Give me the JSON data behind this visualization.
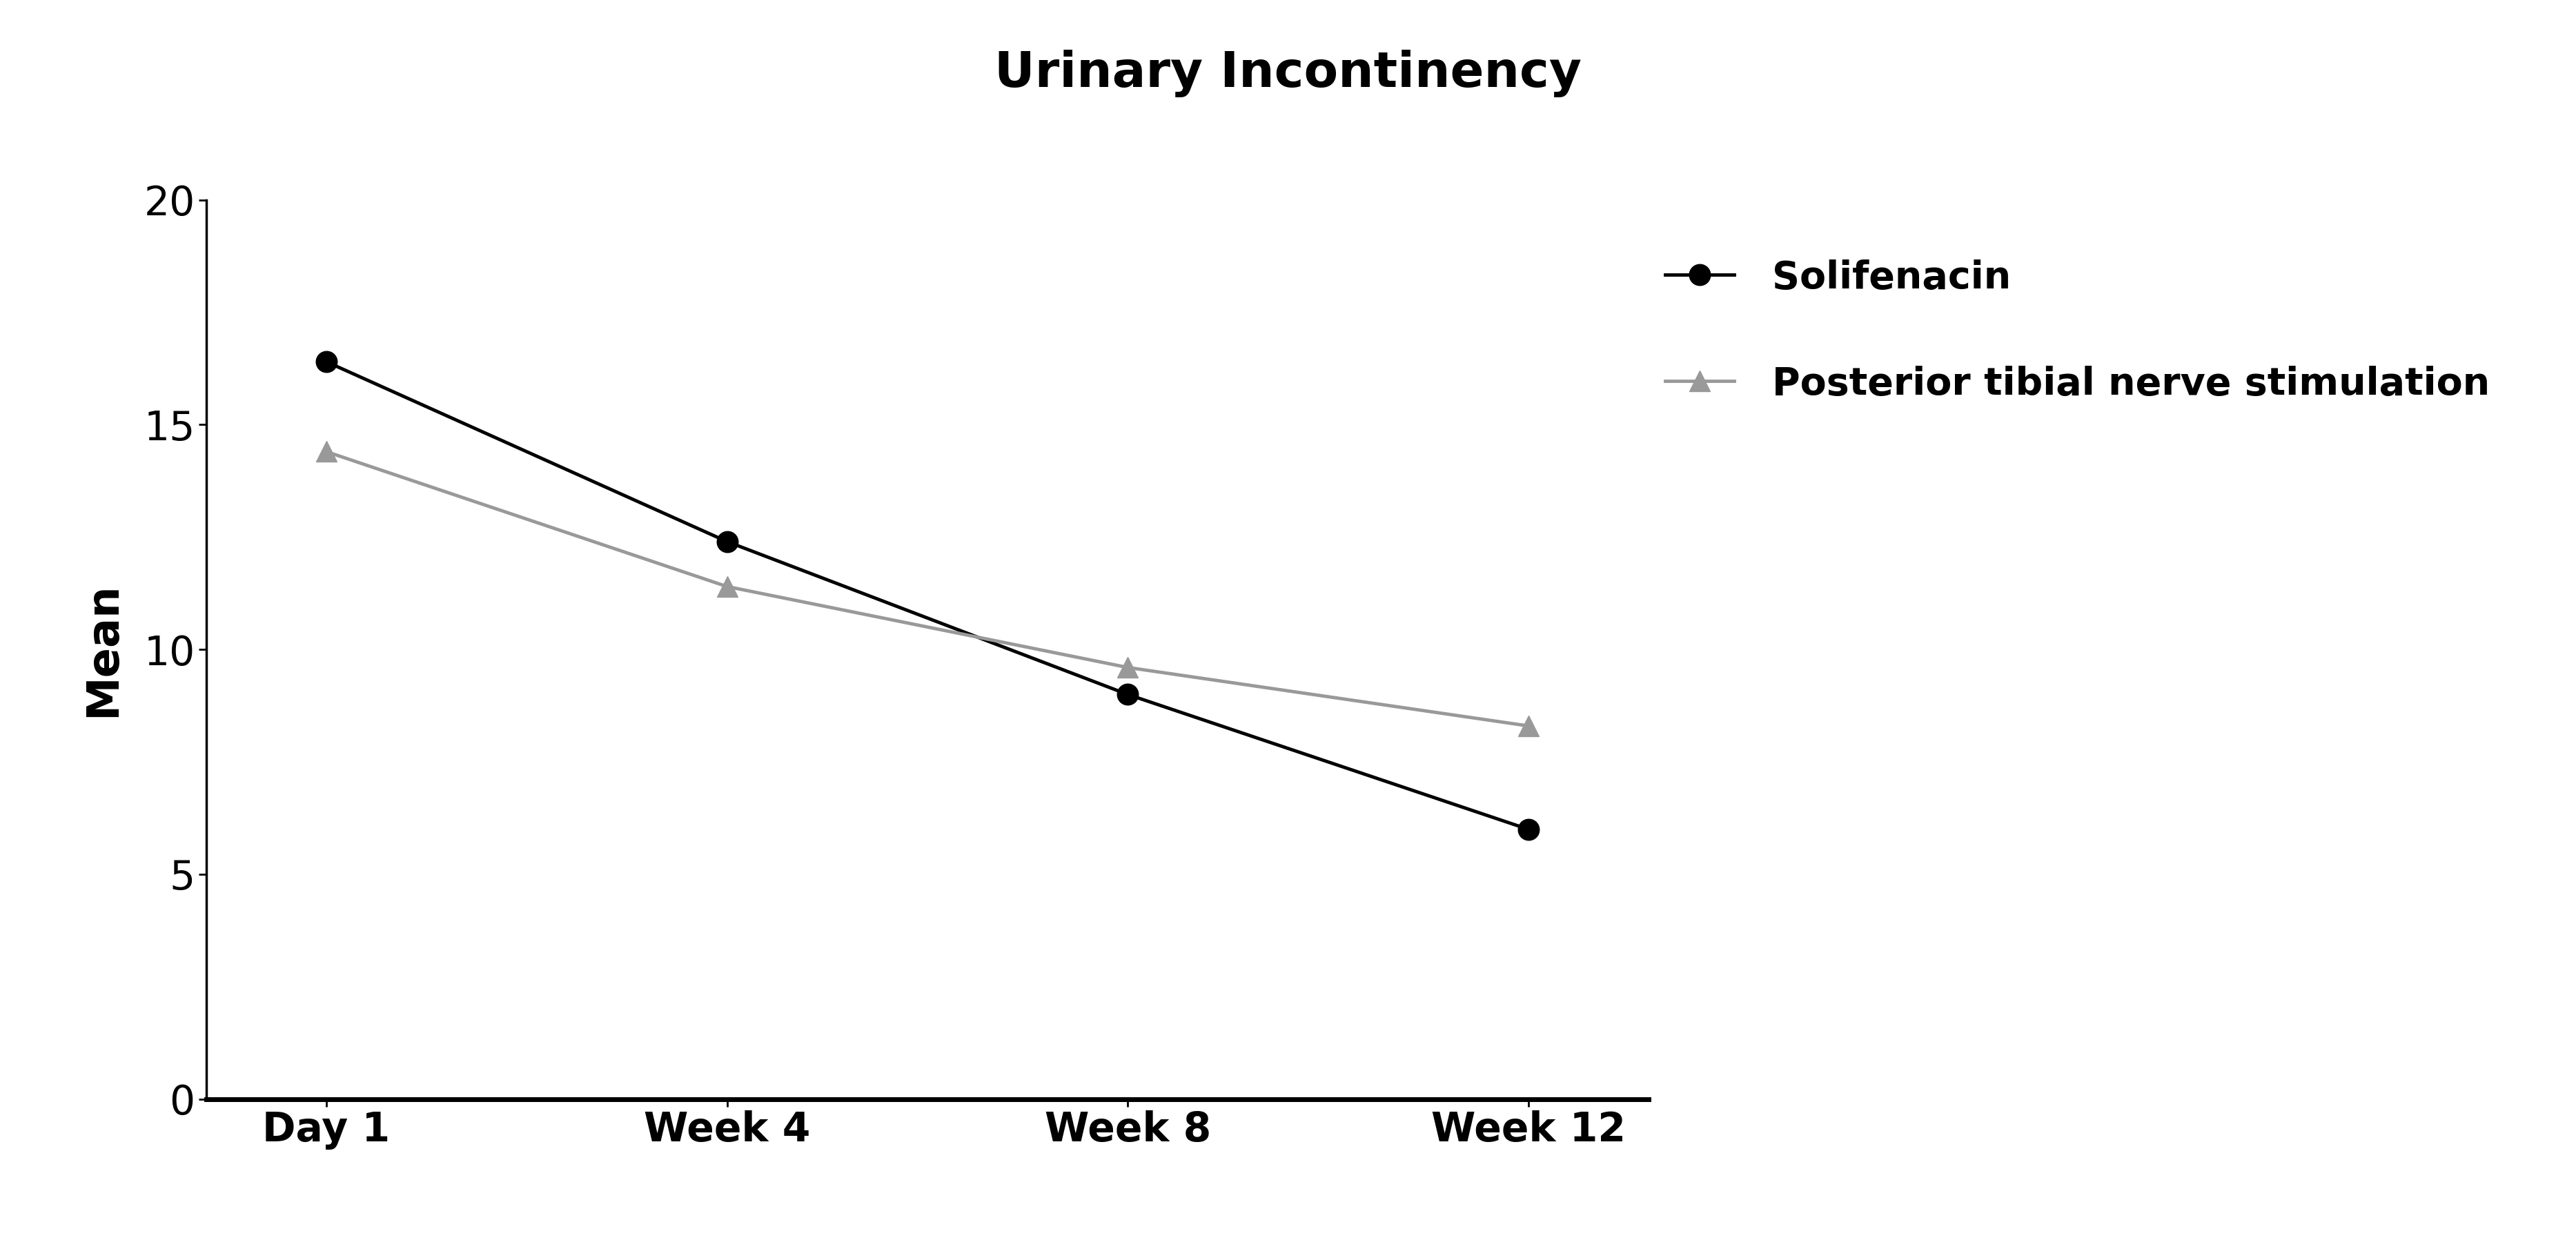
{
  "title": "Urinary Incontinency",
  "xlabel": "",
  "ylabel": "Mean",
  "x_labels": [
    "Day 1",
    "Week 4",
    "Week 8",
    "Week 12"
  ],
  "solifenacin_values": [
    16.4,
    12.4,
    9.0,
    6.0
  ],
  "ptns_values": [
    14.4,
    11.4,
    9.6,
    8.3
  ],
  "solifenacin_color": "#000000",
  "ptns_color": "#999999",
  "ylim": [
    0,
    20
  ],
  "yticks": [
    0,
    5,
    10,
    15,
    20
  ],
  "legend_solifenacin": "Solifenacin",
  "legend_ptns": "Posterior tibial nerve stimulation",
  "title_fontsize": 52,
  "label_fontsize": 46,
  "tick_fontsize": 42,
  "legend_fontsize": 40,
  "line_width": 3.5,
  "marker_size": 22,
  "background_color": "#ffffff"
}
